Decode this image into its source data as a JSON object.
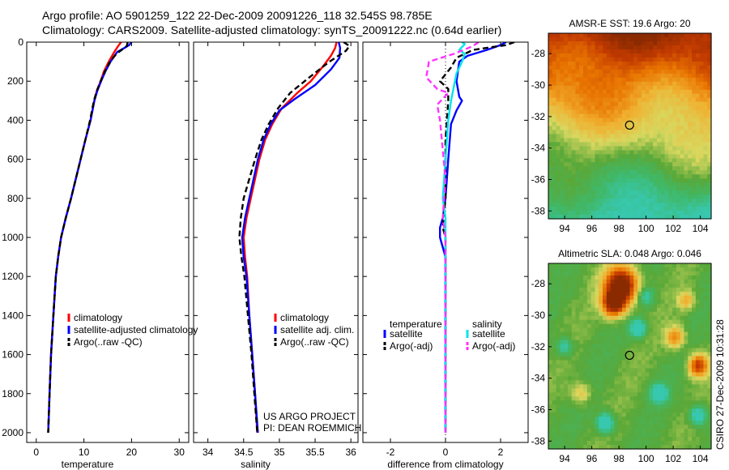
{
  "header": {
    "line1": "Argo profile: AO 5901259_122 22-Dec-2009 20091226_118 32.545S 98.785E",
    "line2": "Climatology: CARS2009. Satellite-adjusted climatology: synTS_20091222.nc (0.64d earlier)"
  },
  "colors": {
    "climatology": "#ff0000",
    "satellite": "#0000ff",
    "argo": "#000000",
    "sal_satellite": "#00e5ee",
    "sal_argo": "#ff33ff"
  },
  "chart_data": [
    {
      "type": "line",
      "title": "",
      "xlabel": "temperature",
      "ylabel": "",
      "xlim": [
        -2,
        32
      ],
      "ylim": [
        2050,
        0
      ],
      "xticks": [
        0,
        10,
        20,
        30
      ],
      "yticks": [
        0,
        200,
        400,
        600,
        800,
        1000,
        1200,
        1400,
        1600,
        1800,
        2000
      ],
      "series": [
        {
          "name": "climatology",
          "color": "#ff0000",
          "dash": "",
          "points": [
            [
              17.8,
              0
            ],
            [
              17.2,
              20
            ],
            [
              16.4,
              50
            ],
            [
              15.2,
              100
            ],
            [
              14.2,
              150
            ],
            [
              13.5,
              200
            ],
            [
              12.7,
              250
            ],
            [
              12.2,
              300
            ],
            [
              11.4,
              400
            ],
            [
              10.3,
              500
            ],
            [
              9.3,
              600
            ],
            [
              8.3,
              700
            ],
            [
              7.3,
              800
            ],
            [
              6.2,
              900
            ],
            [
              5.2,
              1000
            ],
            [
              4.6,
              1100
            ],
            [
              4.1,
              1200
            ],
            [
              3.6,
              1400
            ],
            [
              3.1,
              1600
            ],
            [
              2.8,
              1800
            ],
            [
              2.5,
              2000
            ]
          ]
        },
        {
          "name": "satellite-adjusted climatology",
          "color": "#0000ff",
          "dash": "",
          "points": [
            [
              20.0,
              0
            ],
            [
              19.5,
              15
            ],
            [
              18.5,
              30
            ],
            [
              17.0,
              50
            ],
            [
              15.6,
              100
            ],
            [
              14.5,
              150
            ],
            [
              13.6,
              200
            ],
            [
              12.8,
              250
            ],
            [
              12.2,
              300
            ],
            [
              11.4,
              400
            ],
            [
              10.3,
              500
            ],
            [
              9.3,
              600
            ],
            [
              8.3,
              700
            ],
            [
              7.3,
              800
            ],
            [
              6.2,
              900
            ],
            [
              5.2,
              1000
            ],
            [
              4.6,
              1100
            ],
            [
              4.1,
              1200
            ],
            [
              3.6,
              1400
            ],
            [
              3.1,
              1600
            ],
            [
              2.8,
              1800
            ],
            [
              2.5,
              2000
            ]
          ]
        },
        {
          "name": "Argo(..raw -QC)",
          "color": "#000000",
          "dash": "7,4",
          "points": [
            [
              19.2,
              0
            ],
            [
              19.0,
              20
            ],
            [
              18.2,
              35
            ],
            [
              16.8,
              60
            ],
            [
              15.5,
              100
            ],
            [
              14.4,
              150
            ],
            [
              13.5,
              200
            ],
            [
              12.7,
              250
            ],
            [
              12.1,
              300
            ],
            [
              11.3,
              400
            ],
            [
              10.3,
              500
            ],
            [
              9.3,
              600
            ],
            [
              8.3,
              700
            ],
            [
              7.3,
              800
            ],
            [
              6.2,
              900
            ],
            [
              5.2,
              1000
            ],
            [
              4.6,
              1100
            ],
            [
              4.1,
              1200
            ],
            [
              3.6,
              1400
            ],
            [
              3.1,
              1600
            ],
            [
              2.8,
              1800
            ],
            [
              2.5,
              2000
            ]
          ]
        }
      ],
      "legend": [
        "climatology",
        "satellite-adjusted climatology",
        "Argo(..raw -QC)"
      ]
    },
    {
      "type": "line",
      "title": "",
      "xlabel": "salinity",
      "ylabel": "",
      "xlim": [
        33.8,
        36.1
      ],
      "ylim": [
        2050,
        0
      ],
      "xticks": [
        34,
        34.5,
        35,
        35.5,
        36
      ],
      "yticks": [
        0,
        200,
        400,
        600,
        800,
        1000,
        1200,
        1400,
        1600,
        1800,
        2000
      ],
      "series": [
        {
          "name": "climatology",
          "color": "#ff0000",
          "dash": "",
          "points": [
            [
              35.8,
              0
            ],
            [
              35.78,
              30
            ],
            [
              35.72,
              70
            ],
            [
              35.62,
              120
            ],
            [
              35.44,
              200
            ],
            [
              35.25,
              260
            ],
            [
              35.03,
              340
            ],
            [
              34.9,
              420
            ],
            [
              34.8,
              500
            ],
            [
              34.72,
              600
            ],
            [
              34.66,
              700
            ],
            [
              34.6,
              800
            ],
            [
              34.54,
              900
            ],
            [
              34.5,
              1000
            ],
            [
              34.52,
              1100
            ],
            [
              34.55,
              1200
            ],
            [
              34.58,
              1400
            ],
            [
              34.62,
              1600
            ],
            [
              34.66,
              1800
            ],
            [
              34.69,
              2000
            ]
          ]
        },
        {
          "name": "satellite adj. clim.",
          "color": "#0000ff",
          "dash": "",
          "points": [
            [
              35.83,
              0
            ],
            [
              35.85,
              30
            ],
            [
              35.84,
              80
            ],
            [
              35.72,
              140
            ],
            [
              35.5,
              220
            ],
            [
              35.22,
              290
            ],
            [
              35.0,
              350
            ],
            [
              34.88,
              420
            ],
            [
              34.78,
              500
            ],
            [
              34.7,
              600
            ],
            [
              34.64,
              700
            ],
            [
              34.58,
              800
            ],
            [
              34.52,
              900
            ],
            [
              34.48,
              1000
            ],
            [
              34.5,
              1100
            ],
            [
              34.54,
              1200
            ],
            [
              34.58,
              1400
            ],
            [
              34.62,
              1600
            ],
            [
              34.66,
              1800
            ],
            [
              34.7,
              2000
            ]
          ]
        },
        {
          "name": "Argo(..raw -QC)",
          "color": "#000000",
          "dash": "7,4",
          "points": [
            [
              35.9,
              0
            ],
            [
              35.98,
              20
            ],
            [
              35.93,
              45
            ],
            [
              35.7,
              100
            ],
            [
              35.42,
              180
            ],
            [
              35.15,
              260
            ],
            [
              34.98,
              340
            ],
            [
              34.85,
              420
            ],
            [
              34.75,
              500
            ],
            [
              34.66,
              600
            ],
            [
              34.58,
              700
            ],
            [
              34.5,
              800
            ],
            [
              34.46,
              900
            ],
            [
              34.44,
              1000
            ],
            [
              34.47,
              1100
            ],
            [
              34.51,
              1200
            ],
            [
              34.56,
              1400
            ],
            [
              34.61,
              1600
            ],
            [
              34.65,
              1800
            ],
            [
              34.69,
              2000
            ]
          ]
        }
      ],
      "legend": [
        "climatology",
        "satellite adj. clim.",
        "Argo(..raw -QC)"
      ]
    },
    {
      "type": "line",
      "title": "",
      "xlabel": "difference from climatology",
      "ylabel": "",
      "xlim": [
        -3,
        3
      ],
      "ylim": [
        2050,
        0
      ],
      "xticks": [
        -2,
        0,
        2
      ],
      "yticks": [
        0,
        200,
        400,
        600,
        800,
        1000,
        1200,
        1400,
        1600,
        1800,
        2000
      ],
      "series": [
        {
          "name": "temperature satellite",
          "color": "#0000ff",
          "dash": "",
          "points": [
            [
              2.2,
              0
            ],
            [
              2.0,
              15
            ],
            [
              1.5,
              40
            ],
            [
              0.8,
              70
            ],
            [
              0.5,
              100
            ],
            [
              0.4,
              200
            ],
            [
              0.5,
              280
            ],
            [
              0.6,
              300
            ],
            [
              0.4,
              350
            ],
            [
              0.2,
              420
            ],
            [
              0.1,
              600
            ],
            [
              0.0,
              800
            ],
            [
              -0.1,
              900
            ],
            [
              -0.2,
              950
            ],
            [
              -0.2,
              1000
            ],
            [
              -0.1,
              1050
            ],
            [
              0.0,
              1100
            ],
            [
              0.0,
              1300
            ],
            [
              0.0,
              1600
            ],
            [
              0.0,
              2000
            ]
          ]
        },
        {
          "name": "temperature Argo(-adj)",
          "color": "#000000",
          "dash": "7,4",
          "points": [
            [
              2.5,
              0
            ],
            [
              2.2,
              15
            ],
            [
              1.0,
              40
            ],
            [
              0.4,
              80
            ],
            [
              0.2,
              130
            ],
            [
              -0.2,
              200
            ],
            [
              0.1,
              240
            ],
            [
              0.1,
              300
            ],
            [
              0.0,
              500
            ],
            [
              0.0,
              800
            ],
            [
              -0.1,
              950
            ],
            [
              0.0,
              1000
            ],
            [
              0.0,
              1200
            ],
            [
              0.0,
              1600
            ],
            [
              0.0,
              2000
            ]
          ]
        },
        {
          "name": "salinity satellite",
          "color": "#00e5ee",
          "dash": "",
          "points": [
            [
              0.6,
              0
            ],
            [
              0.7,
              10
            ],
            [
              0.5,
              40
            ],
            [
              0.7,
              60
            ],
            [
              0.6,
              100
            ],
            [
              0.4,
              160
            ],
            [
              0.2,
              300
            ],
            [
              0.1,
              400
            ],
            [
              0.0,
              600
            ],
            [
              -0.1,
              800
            ],
            [
              0.0,
              900
            ],
            [
              0.0,
              1200
            ],
            [
              0.0,
              1600
            ],
            [
              0.0,
              2000
            ]
          ]
        },
        {
          "name": "salinity Argo(-adj)",
          "color": "#ff33ff",
          "dash": "7,4",
          "points": [
            [
              1.2,
              0
            ],
            [
              1.0,
              20
            ],
            [
              0.3,
              60
            ],
            [
              -0.6,
              100
            ],
            [
              -0.7,
              180
            ],
            [
              -0.3,
              240
            ],
            [
              0.1,
              260
            ],
            [
              -0.3,
              320
            ],
            [
              -0.2,
              400
            ],
            [
              -0.1,
              550
            ],
            [
              0.0,
              700
            ],
            [
              -0.1,
              900
            ],
            [
              0.0,
              1000
            ],
            [
              0.0,
              1200
            ],
            [
              0.0,
              1600
            ],
            [
              0.0,
              2000
            ]
          ]
        }
      ],
      "legend_headers": [
        "temperature",
        "salinity"
      ],
      "legend": [
        "satellite",
        "Argo(-adj)",
        "satellite",
        "Argo(-adj)"
      ]
    },
    {
      "type": "heatmap",
      "title": "AMSR-E SST: 19.6  Argo: 20",
      "xlim": [
        92.8,
        104.8
      ],
      "ylim": [
        -38.5,
        -26.7
      ],
      "xticks": [
        94,
        96,
        98,
        100,
        102,
        104
      ],
      "yticks": [
        -28,
        -30,
        -32,
        -34,
        -36,
        -38
      ],
      "marker": [
        98.785,
        -32.545
      ],
      "colormap": [
        "#8a2a00",
        "#c23a00",
        "#e87400",
        "#f0b030",
        "#d8d860",
        "#5aa838",
        "#40b868",
        "#38c8b0"
      ]
    },
    {
      "type": "heatmap",
      "title": "Altimetric SLA: 0.048  Argo: 0.046",
      "xlim": [
        92.8,
        104.8
      ],
      "ylim": [
        -38.5,
        -26.7
      ],
      "xticks": [
        94,
        96,
        98,
        100,
        102,
        104
      ],
      "yticks": [
        -28,
        -30,
        -32,
        -34,
        -36,
        -38
      ],
      "marker": [
        98.785,
        -32.545
      ],
      "colormap": [
        "#8a2a00",
        "#c23a00",
        "#e87400",
        "#f0b030",
        "#d8d860",
        "#5aa838",
        "#40b868",
        "#38c8b0"
      ]
    }
  ],
  "annotations": {
    "project_line1": "US ARGO PROJECT",
    "project_line2": "PI: DEAN ROEMMICH",
    "stamp": "CSIRO  27-Dec-2009 10:31:28"
  }
}
